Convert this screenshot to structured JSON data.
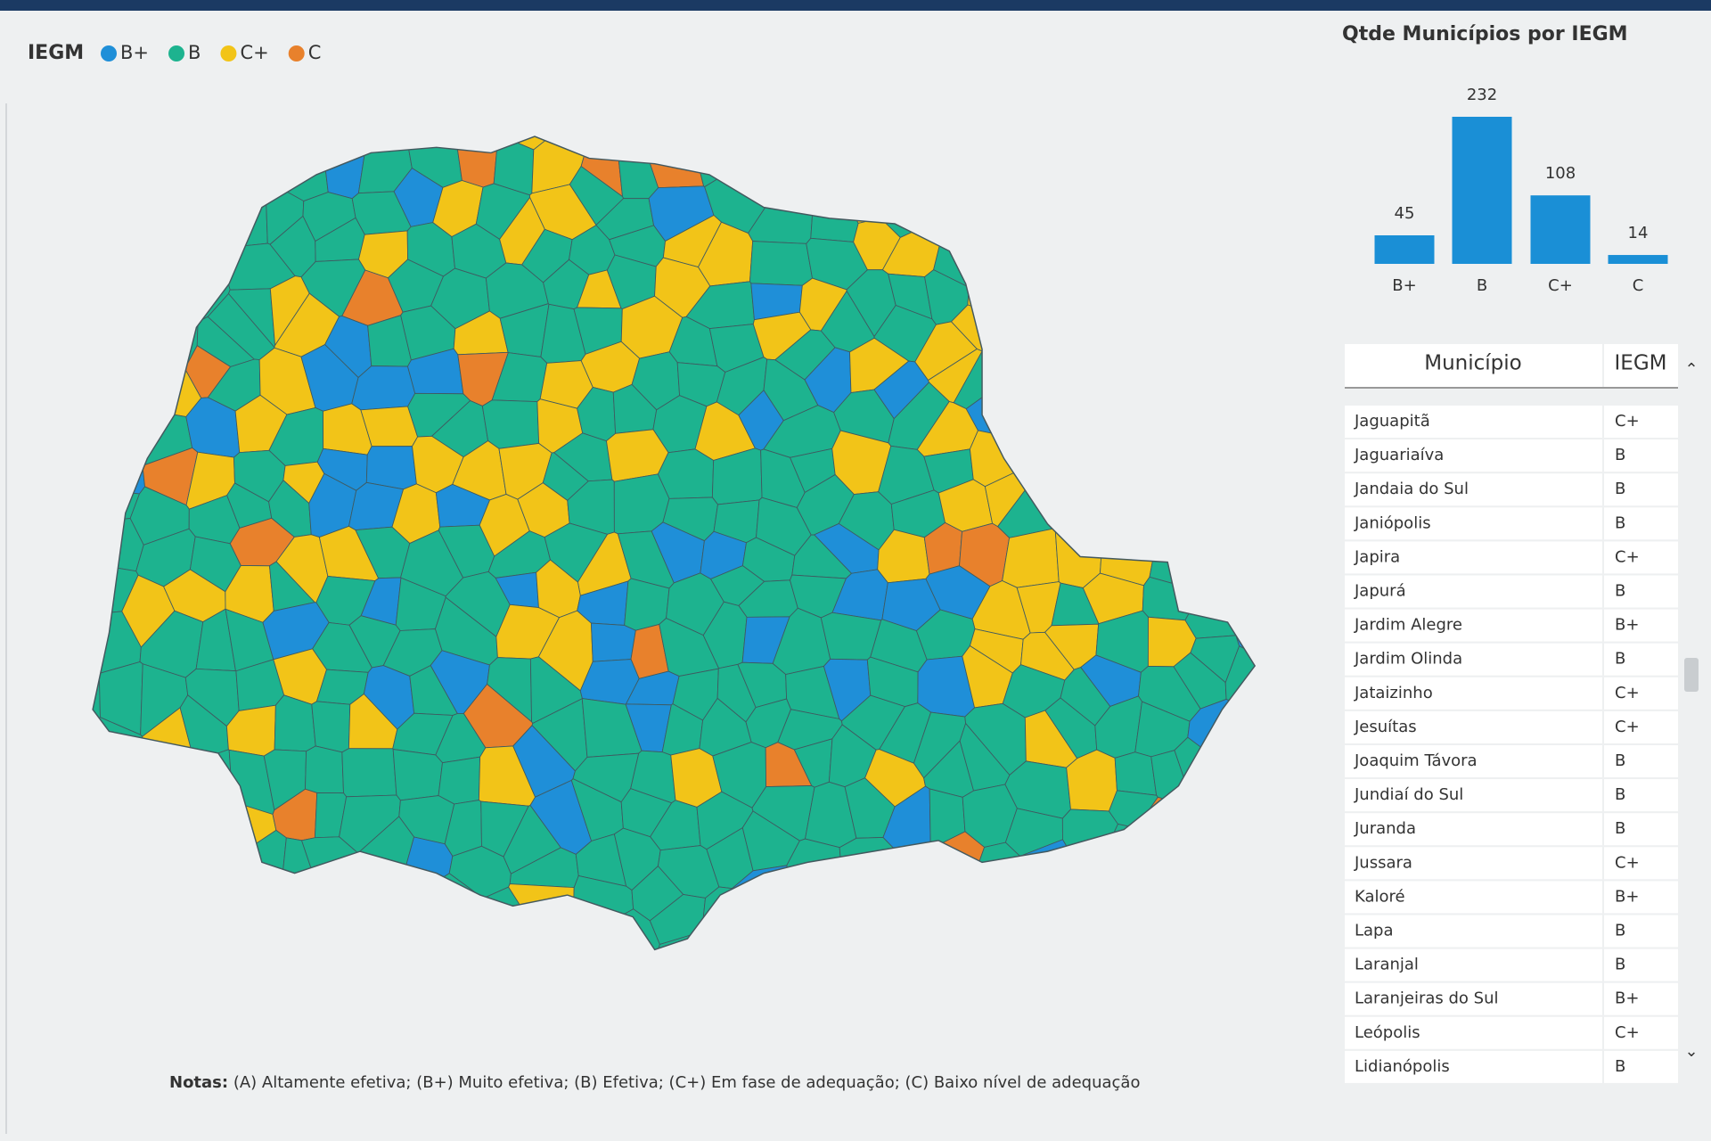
{
  "legend": {
    "title": "IEGM",
    "items": [
      "B+",
      "B",
      "C+",
      "C"
    ],
    "colors": [
      "#1f8fd8",
      "#1db38f",
      "#f2c418",
      "#e8812c"
    ]
  },
  "chart_data": {
    "type": "bar",
    "title": "Qtde Municípios por IEGM",
    "categories": [
      "B+",
      "B",
      "C+",
      "C"
    ],
    "values": [
      45,
      232,
      108,
      14
    ],
    "color": "#1a8fd6"
  },
  "table": {
    "columns": [
      "Município",
      "IEGM"
    ],
    "rows": [
      [
        "Jaguapitã",
        "C+"
      ],
      [
        "Jaguariaíva",
        "B"
      ],
      [
        "Jandaia do Sul",
        "B"
      ],
      [
        "Janiópolis",
        "B"
      ],
      [
        "Japira",
        "C+"
      ],
      [
        "Japurá",
        "B"
      ],
      [
        "Jardim Alegre",
        "B+"
      ],
      [
        "Jardim Olinda",
        "B"
      ],
      [
        "Jataizinho",
        "C+"
      ],
      [
        "Jesuítas",
        "C+"
      ],
      [
        "Joaquim Távora",
        "B"
      ],
      [
        "Jundiaí do Sul",
        "B"
      ],
      [
        "Juranda",
        "B"
      ],
      [
        "Jussara",
        "C+"
      ],
      [
        "Kaloré",
        "B+"
      ],
      [
        "Lapa",
        "B"
      ],
      [
        "Laranjal",
        "B"
      ],
      [
        "Laranjeiras do Sul",
        "B+"
      ],
      [
        "Leópolis",
        "C+"
      ],
      [
        "Lidianópolis",
        "B"
      ]
    ]
  },
  "notes": {
    "label": "Notas:",
    "text": "(A) Altamente efetiva; (B+) Muito efetiva; (B) Efetiva; (C+) Em fase de adequação; (C) Baixo nível de adequação"
  }
}
